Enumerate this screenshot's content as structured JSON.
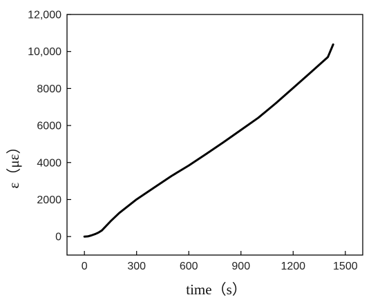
{
  "chart_data": {
    "type": "line",
    "title": "",
    "xlabel": "time（s）",
    "ylabel": "ε（με）",
    "xlim": [
      -100,
      1600
    ],
    "ylim": [
      -1000,
      12000
    ],
    "x_ticks": [
      0,
      300,
      600,
      900,
      1200,
      1500
    ],
    "x_tick_labels": [
      "0",
      "300",
      "600",
      "900",
      "1200",
      "1500"
    ],
    "y_ticks": [
      0,
      2000,
      4000,
      6000,
      8000,
      10000,
      12000
    ],
    "y_tick_labels": [
      "0",
      "2000",
      "4000",
      "6000",
      "8000",
      "10,000",
      "12,000"
    ],
    "grid": false,
    "series": [
      {
        "color": "#000000",
        "x": [
          0,
          20,
          40,
          60,
          80,
          100,
          150,
          200,
          300,
          400,
          500,
          600,
          700,
          800,
          900,
          1000,
          1100,
          1200,
          1300,
          1400,
          1430
        ],
        "y": [
          0,
          10,
          60,
          130,
          210,
          330,
          820,
          1270,
          2010,
          2640,
          3270,
          3840,
          4460,
          5100,
          5760,
          6420,
          7200,
          8030,
          8860,
          9700,
          10380
        ]
      }
    ]
  }
}
